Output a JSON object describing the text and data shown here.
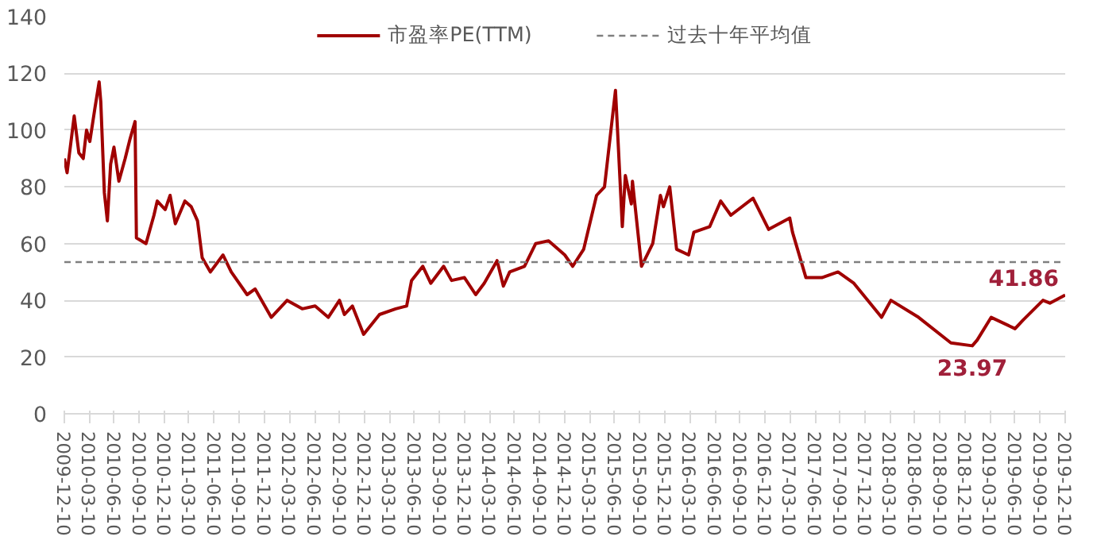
{
  "chart_data": {
    "type": "line",
    "x": [
      "2009-12-10",
      "2009-12-20",
      "2010-01-15",
      "2010-02-01",
      "2010-02-17",
      "2010-03-01",
      "2010-03-13",
      "2010-04-01",
      "2010-04-16",
      "2010-04-22",
      "2010-05-05",
      "2010-05-16",
      "2010-05-28",
      "2010-06-09",
      "2010-06-27",
      "2010-07-20",
      "2010-08-07",
      "2010-08-25",
      "2010-08-30",
      "2010-10-04",
      "2010-11-02",
      "2010-11-14",
      "2010-12-13",
      "2010-12-31",
      "2011-01-19",
      "2011-02-23",
      "2011-03-18",
      "2011-04-10",
      "2011-04-27",
      "2011-05-27",
      "2011-07-12",
      "2011-08-11",
      "2011-10-08",
      "2011-11-06",
      "2012-01-04",
      "2012-03-02",
      "2012-04-26",
      "2012-06-12",
      "2012-07-30",
      "2012-09-09",
      "2012-09-27",
      "2012-10-26",
      "2012-12-06",
      "2013-02-02",
      "2013-04-02",
      "2013-05-12",
      "2013-05-30",
      "2013-07-10",
      "2013-08-08",
      "2013-09-24",
      "2013-10-23",
      "2013-12-09",
      "2014-01-19",
      "2014-02-19",
      "2014-04-07",
      "2014-04-30",
      "2014-05-23",
      "2014-07-16",
      "2014-08-26",
      "2014-10-12",
      "2014-12-10",
      "2015-01-08",
      "2015-02-17",
      "2015-04-05",
      "2015-05-04",
      "2015-06-13",
      "2015-06-20",
      "2015-07-08",
      "2015-07-19",
      "2015-08-10",
      "2015-08-14",
      "2015-09-16",
      "2015-10-27",
      "2015-11-24",
      "2015-12-05",
      "2015-12-28",
      "2016-01-22",
      "2016-03-06",
      "2016-03-25",
      "2016-05-22",
      "2016-07-01",
      "2016-08-07",
      "2016-10-27",
      "2016-12-23",
      "2017-03-10",
      "2017-03-20",
      "2017-05-08",
      "2017-07-05",
      "2017-09-02",
      "2017-10-30",
      "2018-02-08",
      "2018-03-14",
      "2018-06-23",
      "2018-10-19",
      "2019-01-05",
      "2019-01-23",
      "2019-03-15",
      "2019-06-10",
      "2019-07-09",
      "2019-09-20",
      "2019-10-15",
      "2019-12-10"
    ],
    "series": [
      {
        "name": "市盈率PE(TTM)",
        "color": "#a00000",
        "values": [
          90,
          85,
          105,
          92,
          90,
          100,
          96,
          108,
          117,
          110,
          78,
          68,
          88,
          94,
          82,
          90,
          97,
          103,
          62,
          60,
          70,
          75,
          72,
          77,
          67,
          75,
          73,
          68,
          55,
          50,
          56,
          50,
          42,
          44,
          34,
          40,
          37,
          38,
          34,
          40,
          35,
          38,
          28,
          35,
          37,
          38,
          47,
          52,
          46,
          52,
          47,
          48,
          42,
          46,
          54,
          45,
          50,
          52,
          60,
          61,
          56,
          52,
          58,
          77,
          80,
          114,
          101,
          66,
          84,
          74,
          82,
          52,
          60,
          77,
          73,
          80,
          58,
          56,
          64,
          66,
          75,
          70,
          76,
          65,
          69,
          64,
          48,
          48,
          50,
          46,
          34,
          40,
          34,
          25,
          23.97,
          26,
          34,
          30,
          33,
          40,
          39,
          41.86
        ]
      }
    ],
    "ref_lines": [
      {
        "axis": "y",
        "value": 53.5,
        "label": "过去十年平均值",
        "color": "#7f7f7f",
        "line_style": "dashed"
      }
    ],
    "annotations": [
      {
        "text": "41.86",
        "x": "2019-12-10",
        "y": 41.86
      },
      {
        "text": "23.97",
        "x": "2019-01-05",
        "y": 23.97
      }
    ],
    "xlim": [
      "2009-12-10",
      "2019-12-10"
    ],
    "xticks": [
      "2009-12-10",
      "2010-03-10",
      "2010-06-10",
      "2010-09-10",
      "2010-12-10",
      "2011-03-10",
      "2011-06-10",
      "2011-09-10",
      "2011-12-10",
      "2012-03-10",
      "2012-06-10",
      "2012-09-10",
      "2012-12-10",
      "2013-03-10",
      "2013-06-10",
      "2013-09-10",
      "2013-12-10",
      "2014-03-10",
      "2014-06-10",
      "2014-09-10",
      "2014-12-10",
      "2015-03-10",
      "2015-06-10",
      "2015-09-10",
      "2015-12-10",
      "2016-03-10",
      "2016-06-10",
      "2016-09-10",
      "2016-12-10",
      "2017-03-10",
      "2017-06-10",
      "2017-09-10",
      "2017-12-10",
      "2018-03-10",
      "2018-06-10",
      "2018-09-10",
      "2018-12-10",
      "2019-03-10",
      "2019-06-10",
      "2019-09-10",
      "2019-12-10"
    ],
    "ylim": [
      0,
      140
    ],
    "yticks": [
      0,
      20,
      40,
      60,
      80,
      100,
      120,
      140
    ],
    "grid": "y",
    "legend": "top",
    "line_style": "solid",
    "marker": "none"
  }
}
